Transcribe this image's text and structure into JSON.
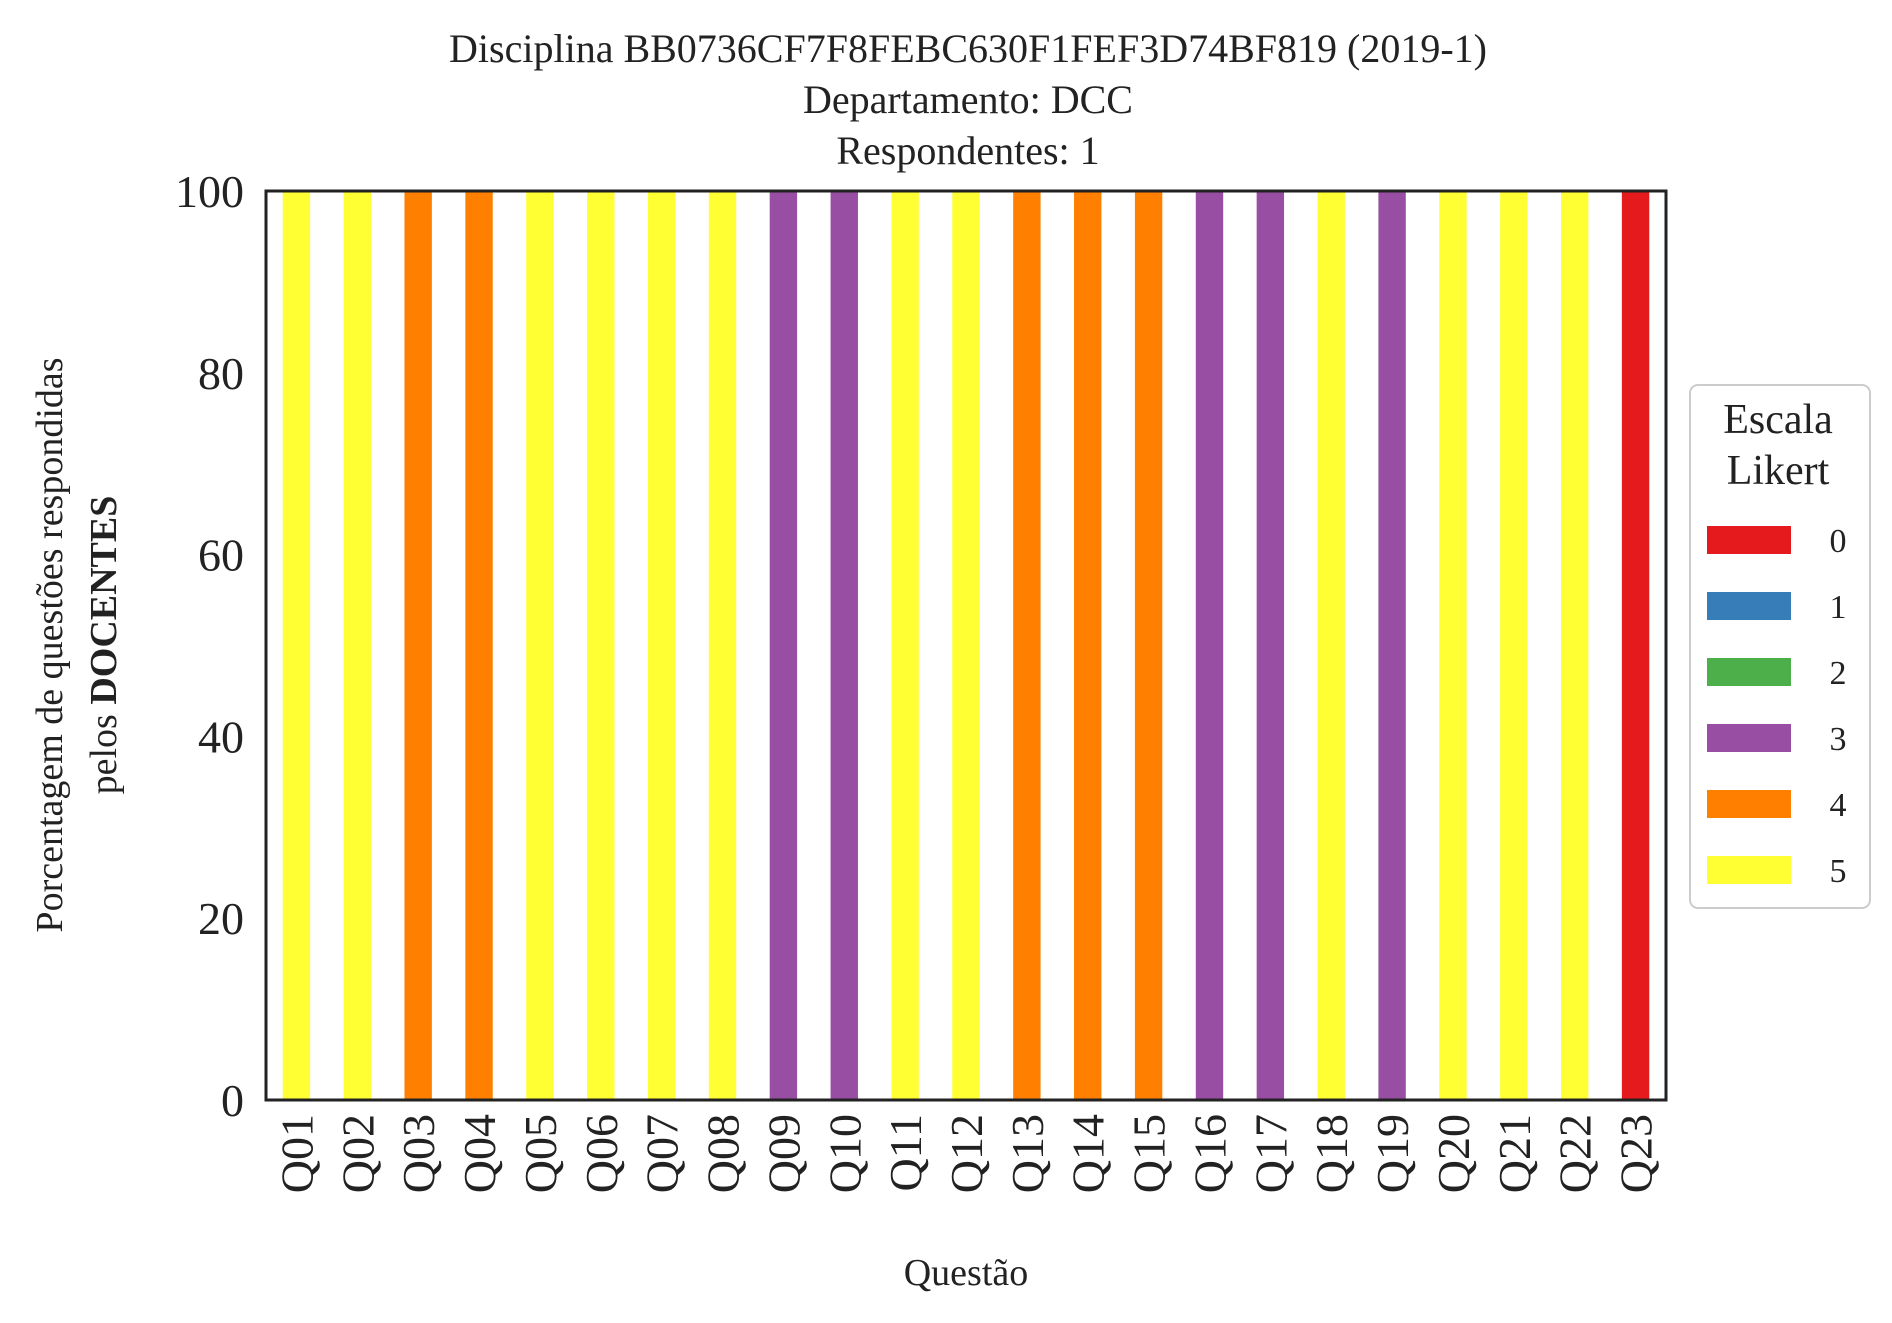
{
  "chart_data": {
    "type": "bar",
    "stacked": true,
    "title_lines": [
      "Disciplina BB0736CF7F8FEBC630F1FEF3D74BF819 (2019-1)",
      "Departamento: DCC",
      "Respondentes: 1"
    ],
    "xlabel": "Questão",
    "ylabel_line1": "Porcentagem de questões respondidas",
    "ylabel_line2_prefix": "pelos ",
    "ylabel_line2_bold": "DOCENTES",
    "ylim": [
      0,
      100
    ],
    "yticks": [
      "0",
      "20",
      "40",
      "60",
      "80",
      "100"
    ],
    "grid": false,
    "categories": [
      "Q01",
      "Q02",
      "Q03",
      "Q04",
      "Q05",
      "Q06",
      "Q07",
      "Q08",
      "Q09",
      "Q10",
      "Q11",
      "Q12",
      "Q13",
      "Q14",
      "Q15",
      "Q16",
      "Q17",
      "Q18",
      "Q19",
      "Q20",
      "Q21",
      "Q22",
      "Q23"
    ],
    "series": [
      {
        "name": "0",
        "color": "#e41a1c",
        "values": [
          0,
          0,
          0,
          0,
          0,
          0,
          0,
          0,
          0,
          0,
          0,
          0,
          0,
          0,
          0,
          0,
          0,
          0,
          0,
          0,
          0,
          0,
          100
        ]
      },
      {
        "name": "1",
        "color": "#377eb8",
        "values": [
          0,
          0,
          0,
          0,
          0,
          0,
          0,
          0,
          0,
          0,
          0,
          0,
          0,
          0,
          0,
          0,
          0,
          0,
          0,
          0,
          0,
          0,
          0
        ]
      },
      {
        "name": "2",
        "color": "#4daf4a",
        "values": [
          0,
          0,
          0,
          0,
          0,
          0,
          0,
          0,
          0,
          0,
          0,
          0,
          0,
          0,
          0,
          0,
          0,
          0,
          0,
          0,
          0,
          0,
          0
        ]
      },
      {
        "name": "3",
        "color": "#984ea3",
        "values": [
          0,
          0,
          0,
          0,
          0,
          0,
          0,
          0,
          100,
          100,
          0,
          0,
          0,
          0,
          0,
          100,
          100,
          0,
          100,
          0,
          0,
          0,
          0
        ]
      },
      {
        "name": "4",
        "color": "#ff7f00",
        "values": [
          0,
          0,
          100,
          100,
          0,
          0,
          0,
          0,
          0,
          0,
          0,
          0,
          100,
          100,
          100,
          0,
          0,
          0,
          0,
          0,
          0,
          0,
          0
        ]
      },
      {
        "name": "5",
        "color": "#ffff33",
        "values": [
          100,
          100,
          0,
          0,
          100,
          100,
          100,
          100,
          0,
          0,
          100,
          100,
          0,
          0,
          0,
          0,
          0,
          100,
          0,
          100,
          100,
          100,
          0
        ]
      }
    ],
    "legend": {
      "title_lines": [
        "Escala",
        "Likert"
      ],
      "placement": "right"
    }
  }
}
